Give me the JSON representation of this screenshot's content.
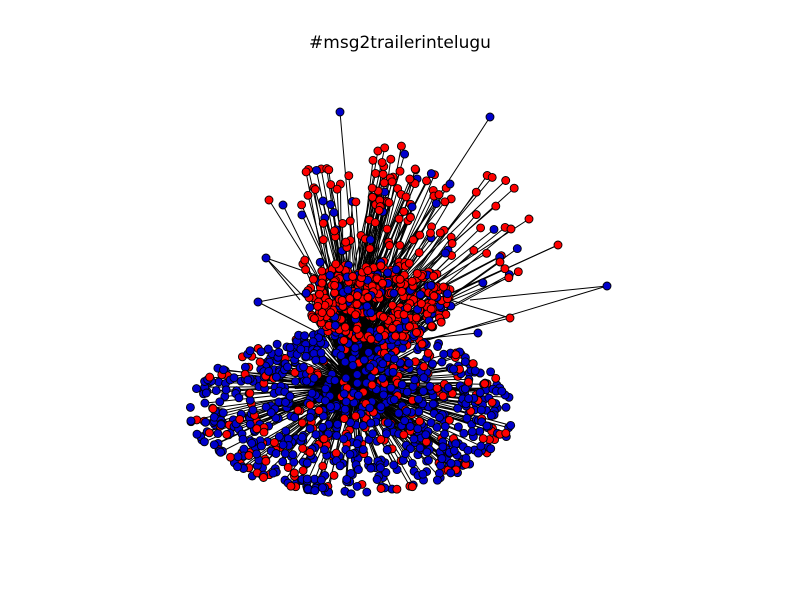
{
  "figure": {
    "title": "#msg2trailerintelugu"
  },
  "graph": {
    "background": "#ffffff",
    "edge_color": "#000000",
    "node_outline": "#000000",
    "node_colors": {
      "red": "#ff0000",
      "blue": "#0000cc"
    }
  }
}
